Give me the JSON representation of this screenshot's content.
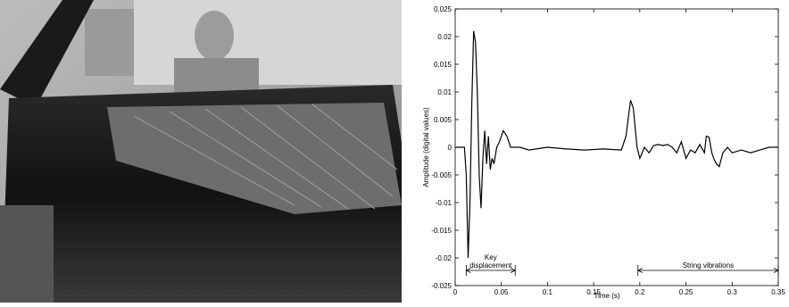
{
  "chart_data": {
    "type": "line",
    "xlabel": "Time (s)",
    "ylabel": "Amplitude (digital values)",
    "x": [
      0,
      0.01,
      0.012,
      0.014,
      0.016,
      0.018,
      0.02,
      0.022,
      0.024,
      0.026,
      0.028,
      0.03,
      0.032,
      0.034,
      0.036,
      0.038,
      0.04,
      0.042,
      0.045,
      0.048,
      0.052,
      0.056,
      0.06,
      0.07,
      0.08,
      0.1,
      0.12,
      0.14,
      0.16,
      0.18,
      0.185,
      0.19,
      0.193,
      0.197,
      0.2,
      0.205,
      0.21,
      0.215,
      0.22,
      0.225,
      0.23,
      0.235,
      0.24,
      0.245,
      0.25,
      0.255,
      0.26,
      0.265,
      0.27,
      0.272,
      0.275,
      0.278,
      0.28,
      0.283,
      0.286,
      0.29,
      0.295,
      0.3,
      0.31,
      0.32,
      0.33,
      0.34,
      0.35
    ],
    "values": [
      0,
      0,
      -0.005,
      -0.02,
      -0.01,
      0.008,
      0.021,
      0.019,
      0.01,
      -0.005,
      -0.011,
      -0.002,
      0.003,
      -0.003,
      0.002,
      -0.004,
      -0.002,
      -0.003,
      0,
      0.001,
      0.003,
      0.002,
      0,
      0,
      -0.0005,
      0,
      -0.0003,
      -0.0005,
      -0.0003,
      -0.0005,
      0.002,
      0.0085,
      0.007,
      0,
      -0.002,
      0,
      -0.001,
      0.0003,
      0.0005,
      0.0003,
      0.0005,
      0,
      -0.001,
      0.001,
      -0.002,
      -0.0005,
      -0.001,
      0.0005,
      -0.001,
      0.002,
      0.0018,
      -0.001,
      -0.002,
      -0.003,
      -0.0035,
      -0.001,
      0,
      -0.001,
      -0.0005,
      -0.001,
      -0.0005,
      0,
      0
    ],
    "color": "#000000",
    "xlim": [
      0,
      0.35
    ],
    "xticks": [
      0,
      0.05,
      0.1,
      0.15,
      0.2,
      0.25,
      0.3,
      0.35
    ],
    "ylim": [
      -0.025,
      0.025
    ],
    "yticks": [
      -0.025,
      -0.02,
      -0.015,
      -0.01,
      -0.005,
      0,
      0.005,
      0.01,
      0.015,
      0.02,
      0.025
    ],
    "annotations": [
      {
        "lines": [
          "Key",
          "displacement"
        ],
        "x": [
          0.012,
          0.065
        ]
      },
      {
        "lines": [
          "String vibrations"
        ],
        "x": [
          0.198,
          0.35
        ]
      }
    ]
  }
}
